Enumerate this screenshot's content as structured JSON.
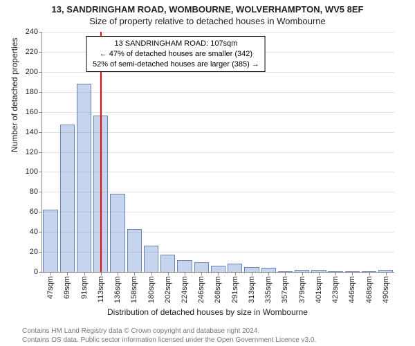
{
  "titles": {
    "line1": "13, SANDRINGHAM ROAD, WOMBOURNE, WOLVERHAMPTON, WV5 8EF",
    "line2": "Size of property relative to detached houses in Wombourne"
  },
  "chart": {
    "type": "histogram",
    "background_color": "#ffffff",
    "grid_color": "#888888",
    "grid_opacity": 0.25,
    "axis_color": "#888888",
    "ylabel": "Number of detached properties",
    "xlabel": "Distribution of detached houses by size in Wombourne",
    "label_fontsize": 12,
    "tick_fontsize": 11,
    "ylim": [
      0,
      240
    ],
    "ytick_step": 20,
    "bar_fill": "#c6d4ee",
    "bar_stroke": "#6a83b5",
    "bar_width_ratio": 0.88,
    "categories": [
      "47sqm",
      "69sqm",
      "91sqm",
      "113sqm",
      "136sqm",
      "158sqm",
      "180sqm",
      "202sqm",
      "224sqm",
      "246sqm",
      "268sqm",
      "291sqm",
      "313sqm",
      "335sqm",
      "357sqm",
      "379sqm",
      "401sqm",
      "423sqm",
      "446sqm",
      "468sqm",
      "490sqm"
    ],
    "values": [
      62,
      147,
      188,
      156,
      78,
      43,
      26,
      17,
      12,
      10,
      6,
      8,
      5,
      4,
      0,
      2,
      2,
      0,
      0,
      0,
      2
    ],
    "marker": {
      "position_index": 2.95,
      "color": "#ff0000",
      "width": 2
    },
    "annotation": {
      "line1": "13 SANDRINGHAM ROAD: 107sqm",
      "line2": "← 47% of detached houses are smaller (342)",
      "line3": "52% of semi-detached houses are larger (385) →",
      "border_color": "#000000",
      "fontsize": 11,
      "center_x_ratio": 0.38,
      "top_y_ratio": 0.017
    }
  },
  "footer": {
    "line1": "Contains HM Land Registry data © Crown copyright and database right 2024.",
    "line2": "Contains OS data. Public sector information licensed under the Open Government Licence v3.0.",
    "color": "#777777",
    "fontsize": 10
  }
}
